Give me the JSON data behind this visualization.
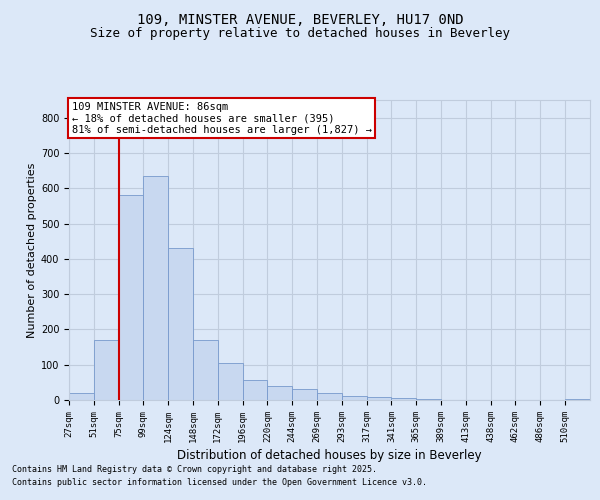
{
  "title": "109, MINSTER AVENUE, BEVERLEY, HU17 0ND",
  "subtitle": "Size of property relative to detached houses in Beverley",
  "xlabel": "Distribution of detached houses by size in Beverley",
  "ylabel": "Number of detached properties",
  "footnote1": "Contains HM Land Registry data © Crown copyright and database right 2025.",
  "footnote2": "Contains public sector information licensed under the Open Government Licence v3.0.",
  "bar_color": "#c8d8f0",
  "bar_edge_color": "#7799cc",
  "grid_color": "#c0ccdd",
  "background_color": "#dce8f8",
  "vline_color": "#cc0000",
  "annotation_text": "109 MINSTER AVENUE: 86sqm\n← 18% of detached houses are smaller (395)\n81% of semi-detached houses are larger (1,827) →",
  "bin_labels": [
    "27sqm",
    "51sqm",
    "75sqm",
    "99sqm",
    "124sqm",
    "148sqm",
    "172sqm",
    "196sqm",
    "220sqm",
    "244sqm",
    "269sqm",
    "293sqm",
    "317sqm",
    "341sqm",
    "365sqm",
    "389sqm",
    "413sqm",
    "438sqm",
    "462sqm",
    "486sqm",
    "510sqm"
  ],
  "values": [
    20,
    170,
    580,
    635,
    430,
    170,
    105,
    58,
    40,
    30,
    20,
    10,
    8,
    5,
    2,
    0,
    0,
    0,
    0,
    0,
    4
  ],
  "ylim": [
    0,
    850
  ],
  "yticks": [
    0,
    100,
    200,
    300,
    400,
    500,
    600,
    700,
    800
  ],
  "vline_pos": 2.0,
  "title_fontsize": 10,
  "subtitle_fontsize": 9,
  "ylabel_fontsize": 8,
  "xlabel_fontsize": 8.5,
  "tick_fontsize": 6.5,
  "annotation_fontsize": 7.5,
  "footnote_fontsize": 6
}
